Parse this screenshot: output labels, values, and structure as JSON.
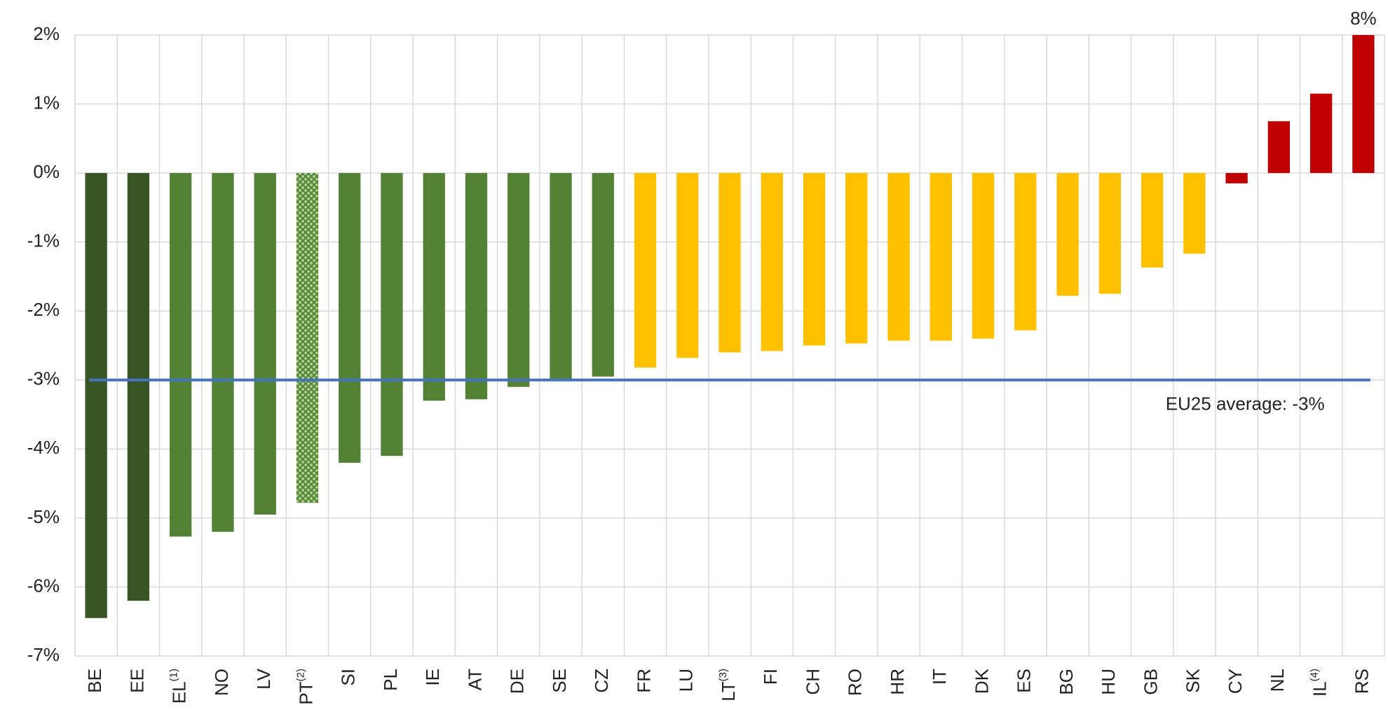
{
  "chart_data": {
    "type": "bar",
    "categories": [
      "BE",
      "EE",
      "EL(1)",
      "NO",
      "LV",
      "PT(2)",
      "SI",
      "PL",
      "IE",
      "AT",
      "DE",
      "SE",
      "CZ",
      "FR",
      "LU",
      "LT(3)",
      "FI",
      "CH",
      "RO",
      "HR",
      "IT",
      "DK",
      "ES",
      "BG",
      "HU",
      "GB",
      "SK",
      "CY",
      "NL",
      "IL(4)",
      "RS"
    ],
    "values": [
      -6.45,
      -6.2,
      -5.27,
      -5.2,
      -4.95,
      -4.78,
      -4.2,
      -4.1,
      -3.3,
      -3.28,
      -3.1,
      -3.0,
      -2.95,
      -2.82,
      -2.68,
      -2.6,
      -2.58,
      -2.5,
      -2.47,
      -2.43,
      -2.43,
      -2.4,
      -2.28,
      -1.78,
      -1.75,
      -1.37,
      -1.17,
      -0.15,
      0.75,
      1.15,
      8
    ],
    "value_labels": [
      null,
      null,
      null,
      null,
      null,
      null,
      null,
      null,
      null,
      null,
      null,
      null,
      null,
      null,
      null,
      null,
      null,
      null,
      null,
      null,
      null,
      null,
      null,
      null,
      null,
      null,
      null,
      null,
      null,
      null,
      "8%"
    ],
    "colors": [
      "#375623",
      "#375623",
      "#548235",
      "#548235",
      "#548235",
      "#548235",
      "#548235",
      "#548235",
      "#548235",
      "#548235",
      "#548235",
      "#548235",
      "#548235",
      "#ffc000",
      "#ffc000",
      "#ffc000",
      "#ffc000",
      "#ffc000",
      "#ffc000",
      "#ffc000",
      "#ffc000",
      "#ffc000",
      "#ffc000",
      "#ffc000",
      "#ffc000",
      "#ffc000",
      "#ffc000",
      "#c00000",
      "#c00000",
      "#c00000",
      "#c00000"
    ],
    "patterns": [
      "solid",
      "solid",
      "solid",
      "solid",
      "solid",
      "crosshatch",
      "solid",
      "solid",
      "solid",
      "solid",
      "solid",
      "solid",
      "solid",
      "solid",
      "solid",
      "solid",
      "solid",
      "solid",
      "solid",
      "solid",
      "solid",
      "solid",
      "solid",
      "solid",
      "solid",
      "solid",
      "solid",
      "solid",
      "solid",
      "solid",
      "solid"
    ],
    "reference_line": {
      "value": -3,
      "label": "EU25 average: -3%",
      "color": "#4472c4"
    },
    "ylim": [
      -7,
      2
    ],
    "yticks": [
      {
        "value": -7,
        "label": "-7%"
      },
      {
        "value": -6,
        "label": "-6%"
      },
      {
        "value": -5,
        "label": "-5%"
      },
      {
        "value": -4,
        "label": "-4%"
      },
      {
        "value": -3,
        "label": "-3%"
      },
      {
        "value": -2,
        "label": "-2%"
      },
      {
        "value": -1,
        "label": "-1%"
      },
      {
        "value": 0,
        "label": "0%"
      },
      {
        "value": 1,
        "label": "1%"
      },
      {
        "value": 2,
        "label": "2%"
      }
    ],
    "grid": true
  }
}
